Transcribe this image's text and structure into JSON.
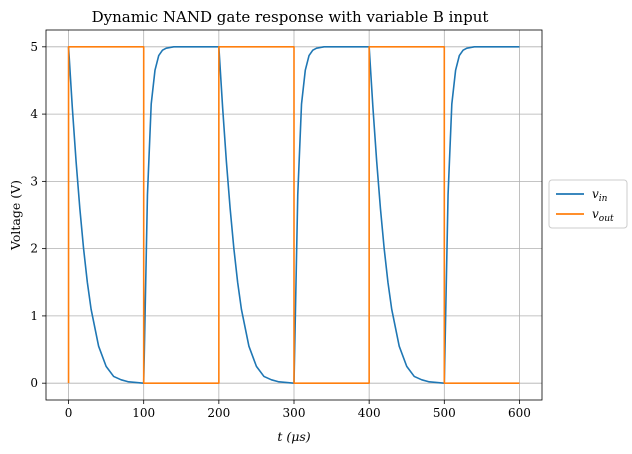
{
  "chart_data": {
    "type": "line",
    "title": "Dynamic NAND gate response with variable B input",
    "xlabel": "t (μs)",
    "ylabel": "Voltage (V)",
    "xlim": [
      -30,
      630
    ],
    "ylim": [
      -0.25,
      5.25
    ],
    "xticks": [
      0,
      100,
      200,
      300,
      400,
      500,
      600
    ],
    "yticks": [
      0,
      1,
      2,
      3,
      4,
      5
    ],
    "grid": true,
    "legend_position": "center-right-outside",
    "series": [
      {
        "name": "v_in",
        "legend_main": "v",
        "legend_sub": "in",
        "color": "#1f77b4",
        "description": "exponential decay from 5 V over 100 μs, then exponential rise to 5 V over next 100 μs; period 200 μs",
        "x": [
          0,
          5,
          10,
          15,
          20,
          25,
          30,
          40,
          50,
          60,
          70,
          80,
          100,
          100,
          105,
          110,
          115,
          120,
          125,
          130,
          140,
          160,
          200,
          200,
          205,
          210,
          215,
          220,
          225,
          230,
          240,
          250,
          260,
          270,
          280,
          300,
          300,
          305,
          310,
          315,
          320,
          325,
          330,
          340,
          360,
          400,
          400,
          405,
          410,
          415,
          420,
          425,
          430,
          440,
          450,
          460,
          470,
          480,
          500,
          500,
          505,
          510,
          515,
          520,
          525,
          530,
          540,
          560,
          600
        ],
        "y": [
          5.0,
          4.1,
          3.3,
          2.6,
          2.0,
          1.5,
          1.1,
          0.55,
          0.25,
          0.1,
          0.05,
          0.02,
          0.0,
          0.0,
          2.8,
          4.15,
          4.65,
          4.87,
          4.95,
          4.98,
          5.0,
          5.0,
          5.0,
          5.0,
          4.1,
          3.3,
          2.6,
          2.0,
          1.5,
          1.1,
          0.55,
          0.25,
          0.1,
          0.05,
          0.02,
          0.0,
          0.0,
          2.8,
          4.15,
          4.65,
          4.87,
          4.95,
          4.98,
          5.0,
          5.0,
          5.0,
          5.0,
          4.1,
          3.3,
          2.6,
          2.0,
          1.5,
          1.1,
          0.55,
          0.25,
          0.1,
          0.05,
          0.02,
          0.0,
          0.0,
          2.8,
          4.15,
          4.65,
          4.87,
          4.95,
          4.98,
          5.0,
          5.0,
          5.0
        ]
      },
      {
        "name": "v_out",
        "legend_main": "v",
        "legend_sub": "out",
        "color": "#ff7f0e",
        "description": "square wave: 0 V at t=0, 5 V from 0 to 100 μs, 0 V from 100 to 200 μs, repeating",
        "x": [
          0,
          0,
          100,
          100,
          200,
          200,
          300,
          300,
          400,
          400,
          500,
          500,
          600
        ],
        "y": [
          0,
          5,
          5,
          0,
          0,
          5,
          5,
          0,
          0,
          5,
          5,
          0,
          0
        ]
      }
    ]
  }
}
